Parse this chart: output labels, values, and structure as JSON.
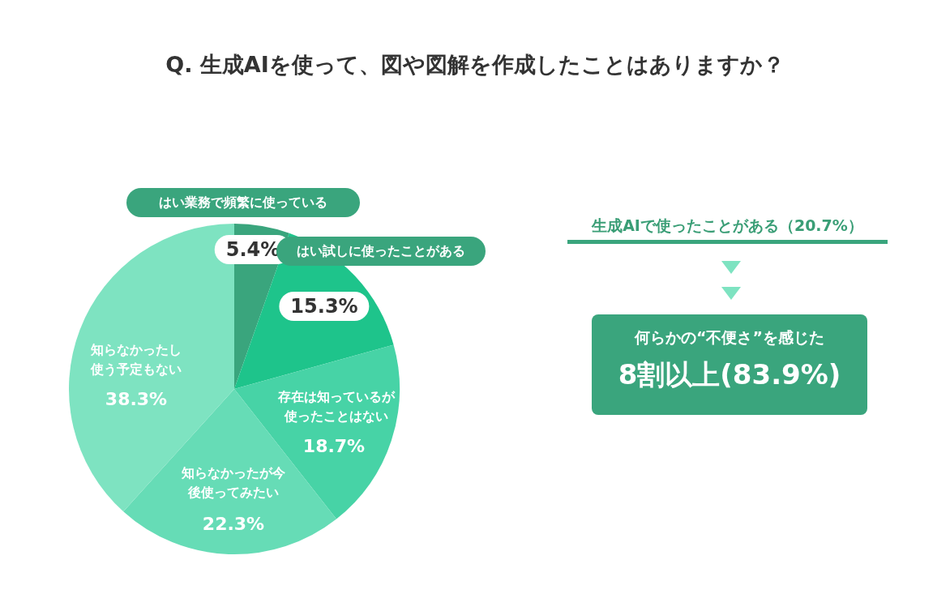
{
  "chart_data": {
    "type": "pie",
    "title": "Q. 生成AIを使って、図や図解を作成したことはありますか？",
    "categories": [
      "はい業務で頻繁に使っている",
      "はい試しに使ったことがある",
      "存在は知っているが使ったことはない",
      "知らなかったが今後使ってみたい",
      "知らなかったし使う予定もない"
    ],
    "values": [
      5.4,
      15.3,
      18.7,
      22.3,
      38.3
    ],
    "value_labels": [
      "5.4%",
      "15.3%",
      "18.7%",
      "22.3%",
      "38.3%"
    ],
    "colors": [
      "#3aa57d",
      "#1ec48b",
      "#47d3a6",
      "#66dcb6",
      "#7ee3c1"
    ],
    "annotations": [
      "生成AIで使ったことがある（20.7%）",
      "何らかの“不便さ”を感じた",
      "8割以上(83.9%)"
    ],
    "legend": false
  }
}
